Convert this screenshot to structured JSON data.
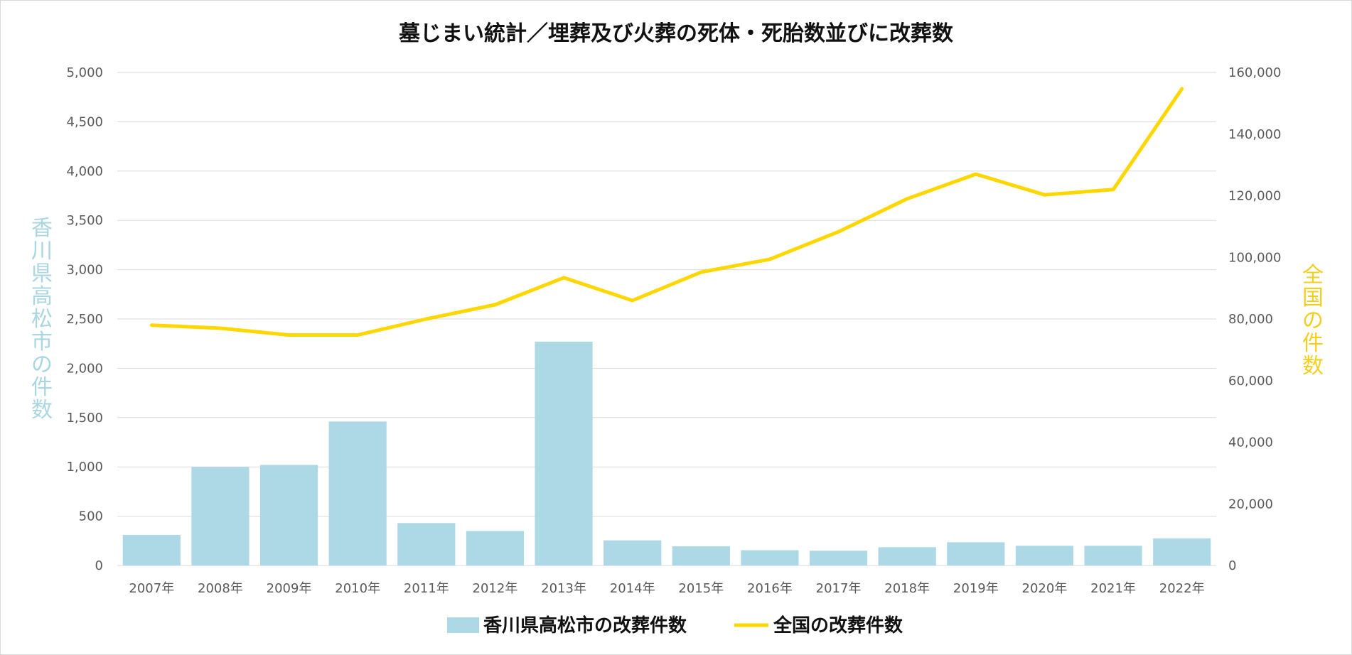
{
  "chart_data": {
    "type": "bar",
    "title": "墓じまい統計／埋葬及び火葬の死体・死胎数並びに改葬数",
    "categories": [
      "2007年",
      "2008年",
      "2009年",
      "2010年",
      "2011年",
      "2012年",
      "2013年",
      "2014年",
      "2015年",
      "2016年",
      "2017年",
      "2018年",
      "2019年",
      "2020年",
      "2021年",
      "2022年"
    ],
    "series": [
      {
        "name": "香川県高松市の改葬件数",
        "type": "bar",
        "axis": "left",
        "color": "#add8e6",
        "values": [
          310,
          1000,
          1020,
          1460,
          430,
          350,
          2270,
          255,
          195,
          155,
          150,
          185,
          235,
          200,
          200,
          275
        ]
      },
      {
        "name": "全国の改葬件数",
        "type": "line",
        "axis": "right",
        "color": "#ffd700",
        "values": [
          78000,
          77000,
          74800,
          74800,
          80000,
          84600,
          93400,
          86000,
          95200,
          99400,
          108300,
          119000,
          127000,
          120300,
          122000,
          154700
        ]
      }
    ],
    "ylabel": "香川県高松市の件数",
    "y2label": "全国の件数",
    "ylim": [
      0,
      5000
    ],
    "y2lim": [
      0,
      160000
    ],
    "yticks": [
      "0",
      "500",
      "1,000",
      "1,500",
      "2,000",
      "2,500",
      "3,000",
      "3,500",
      "4,000",
      "4,500",
      "5,000"
    ],
    "y2ticks": [
      "0",
      "20,000",
      "40,000",
      "60,000",
      "80,000",
      "100,000",
      "120,000",
      "140,000",
      "160,000"
    ],
    "grid": true,
    "legend_position": "bottom"
  }
}
